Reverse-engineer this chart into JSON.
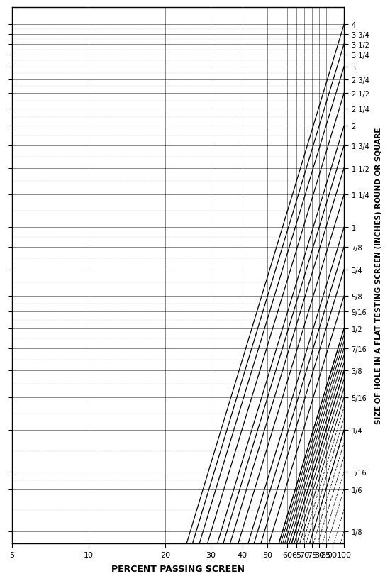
{
  "title": "",
  "xlabel": "PERCENT PASSING SCREEN",
  "ylabel": "SIZE OF HOLE IN A FLAT TESTING SCREEN (INCHES) ROUND OR SQUARE",
  "background_color": "#ffffff",
  "line_color": "#000000",
  "x_tick_percents": [
    5,
    10,
    20,
    30,
    40,
    50,
    60,
    65,
    70,
    75,
    80,
    85,
    90,
    100
  ],
  "x_tick_labels": [
    "5",
    "10",
    "20",
    "30",
    "40",
    "50",
    "60",
    "65",
    "70",
    "75",
    "80",
    "85",
    "90",
    "100"
  ],
  "y_values_inches": [
    0.125,
    0.1667,
    0.1875,
    0.25,
    0.3125,
    0.375,
    0.4375,
    0.5,
    0.5625,
    0.625,
    0.75,
    0.875,
    1.0,
    1.25,
    1.5,
    1.75,
    2.0,
    2.25,
    2.5,
    2.75,
    3.0,
    3.25,
    3.5,
    3.75,
    4.0
  ],
  "y_tick_labels_map": {
    "0.125": "1/8",
    "0.1667": "1/6",
    "0.1875": "3/16",
    "0.25": "1/4",
    "0.3125": "5/16",
    "0.375": "3/8",
    "0.4375": "7/16",
    "0.5": "1/2",
    "0.5625": "9/16",
    "0.625": "5/8",
    "0.75": "3/4",
    "0.875": "7/8",
    "1.0": "1",
    "1.25": "1 1/4",
    "1.5": "1 1/2",
    "1.75": "1 3/4",
    "2.0": "2",
    "2.25": "2 1/4",
    "2.5": "2 1/2",
    "2.75": "2 3/4",
    "3.0": "3",
    "3.25": "3 1/4",
    "3.5": "3 1/2",
    "3.75": "3 3/4",
    "4.0": "4"
  },
  "main_settings": [
    0.25,
    0.375,
    0.5,
    0.625,
    0.75,
    0.875,
    1.0,
    1.25,
    1.5,
    1.75,
    2.0,
    2.5,
    3.0,
    3.5,
    4.0
  ],
  "small_settings": [
    0.125,
    0.145,
    0.167,
    0.1875,
    0.208,
    0.229,
    0.25,
    0.271,
    0.292,
    0.3125,
    0.333,
    0.354,
    0.375,
    0.396,
    0.417,
    0.4375,
    0.458,
    0.479,
    0.5
  ],
  "alpha": 2.5
}
